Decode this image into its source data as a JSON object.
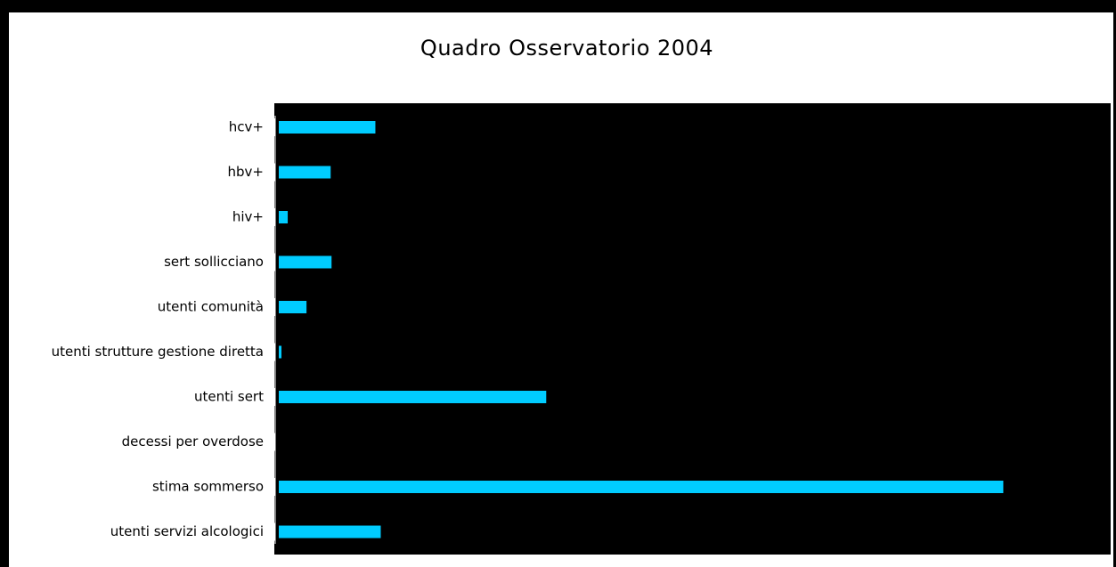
{
  "chart_data": {
    "type": "bar",
    "orientation": "horizontal",
    "title": "Quadro Osservatorio 2004",
    "categories": [
      "hcv+",
      "hbv+",
      "hiv+",
      "sert sollicciano",
      "utenti comunità",
      "utenti strutture gestione diretta",
      "utenti sert",
      "decessi per overdose",
      "stima sommerso",
      "utenti servizi alcologici"
    ],
    "values": [
      108,
      58,
      10,
      59,
      31,
      3,
      299,
      0,
      810,
      114
    ],
    "xlim": [
      0,
      935
    ],
    "xlabel": "",
    "ylabel": "",
    "grid": false,
    "legend": "none",
    "colors": {
      "bar": "#00ccff",
      "plot_background": "#000000",
      "frame": "#000000",
      "page_background": "#ffffff"
    }
  }
}
